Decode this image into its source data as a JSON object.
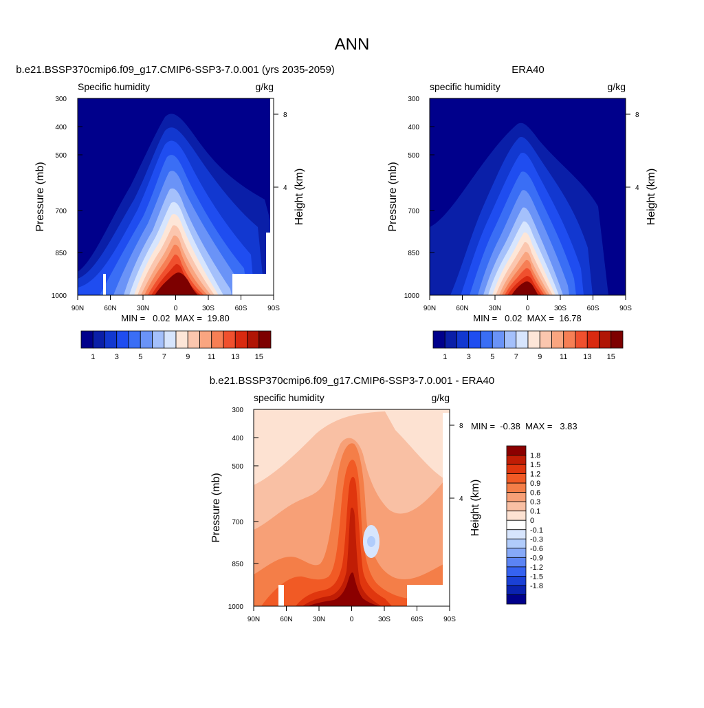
{
  "main_title": "ANN",
  "panels": [
    {
      "title": "b.e21.BSSP370cmip6.f09_g17.CMIP6-SSP3-7.0.001 (yrs 2035-2059)",
      "left_label": "Specific humidity",
      "right_label": "g/kg",
      "ylabel": "Pressure (mb)",
      "y2label": "Height (km)",
      "stats": "MIN =   0.02  MAX =  19.80"
    },
    {
      "title": "ERA40",
      "left_label": "specific humidity",
      "right_label": "g/kg",
      "ylabel": "Pressure (mb)",
      "y2label": "Height (km)",
      "stats": "MIN =   0.02  MAX =  16.78"
    },
    {
      "title": "b.e21.BSSP370cmip6.f09_g17.CMIP6-SSP3-7.0.001 - ERA40",
      "left_label": "specific humidity",
      "right_label": "g/kg",
      "ylabel": "Pressure (mb)",
      "y2label": "Height (km)",
      "stats": "MIN =  -0.38  MAX =   3.83"
    }
  ],
  "colorbar_hum": {
    "colors": [
      "#00008b",
      "#0a1fa8",
      "#1238d0",
      "#1f4df0",
      "#3a6ef5",
      "#6a93f7",
      "#a4c0fb",
      "#d7e5fd",
      "#fde6d8",
      "#fbc6ae",
      "#f9a580",
      "#f67f55",
      "#f0502e",
      "#d92a10",
      "#b01505",
      "#7d0000"
    ],
    "tick_labels": [
      "1",
      "3",
      "5",
      "7",
      "9",
      "11",
      "13",
      "15"
    ]
  },
  "colorbar_diff": {
    "colors": [
      "#8b0000",
      "#c01d05",
      "#e0360e",
      "#f15a25",
      "#f47e48",
      "#f7a077",
      "#f9c0a4",
      "#fde2d2",
      "#ffffff",
      "#d7e5fd",
      "#b1ccfb",
      "#86a9f8",
      "#5b84f4",
      "#3562f0",
      "#1a40d6",
      "#0a22b0",
      "#00008b"
    ],
    "tick_labels": [
      "1.8",
      "1.5",
      "1.2",
      "0.9",
      "0.6",
      "0.3",
      "0.1",
      "0",
      "-0.1",
      "-0.3",
      "-0.6",
      "-0.9",
      "-1.2",
      "-1.5",
      "-1.8"
    ]
  },
  "chart_data": [
    {
      "type": "heatmap",
      "title": "b.e21.BSSP370cmip6.f09_g17.CMIP6-SSP3-7.0.001 (yrs 2035-2059)",
      "variable": "Specific humidity",
      "units": "g/kg",
      "xlabel": "",
      "ylabel": "Pressure (mb)",
      "y2label": "Height (km)",
      "x_tick_labels": [
        "90N",
        "60N",
        "30N",
        "0",
        "30S",
        "60S",
        "90S"
      ],
      "y_tick_labels": [
        "300",
        "400",
        "500",
        "700",
        "850",
        "1000"
      ],
      "y2_tick_labels": [
        "8",
        "4"
      ],
      "ylim": [
        1000,
        300
      ],
      "levels": [
        1,
        2,
        3,
        4,
        5,
        6,
        7,
        8,
        9,
        10,
        11,
        12,
        13,
        14,
        15
      ],
      "min": 0.02,
      "max": 19.8
    },
    {
      "type": "heatmap",
      "title": "ERA40",
      "variable": "specific humidity",
      "units": "g/kg",
      "xlabel": "",
      "ylabel": "Pressure (mb)",
      "y2label": "Height (km)",
      "x_tick_labels": [
        "90N",
        "60N",
        "30N",
        "0",
        "30S",
        "60S",
        "90S"
      ],
      "y_tick_labels": [
        "300",
        "400",
        "500",
        "700",
        "850",
        "1000"
      ],
      "y2_tick_labels": [
        "8",
        "4"
      ],
      "ylim": [
        1000,
        300
      ],
      "levels": [
        1,
        2,
        3,
        4,
        5,
        6,
        7,
        8,
        9,
        10,
        11,
        12,
        13,
        14,
        15
      ],
      "min": 0.02,
      "max": 16.78
    },
    {
      "type": "heatmap",
      "title": "b.e21.BSSP370cmip6.f09_g17.CMIP6-SSP3-7.0.001 - ERA40",
      "variable": "specific humidity",
      "units": "g/kg",
      "xlabel": "",
      "ylabel": "Pressure (mb)",
      "y2label": "Height (km)",
      "x_tick_labels": [
        "90N",
        "60N",
        "30N",
        "0",
        "30S",
        "60S",
        "90S"
      ],
      "y_tick_labels": [
        "300",
        "400",
        "500",
        "700",
        "850",
        "1000"
      ],
      "y2_tick_labels": [
        "8",
        "4"
      ],
      "ylim": [
        1000,
        300
      ],
      "levels": [
        -1.8,
        -1.5,
        -1.2,
        -0.9,
        -0.6,
        -0.3,
        -0.1,
        0,
        0.1,
        0.3,
        0.6,
        0.9,
        1.2,
        1.5,
        1.8
      ],
      "min": -0.38,
      "max": 3.83
    }
  ]
}
